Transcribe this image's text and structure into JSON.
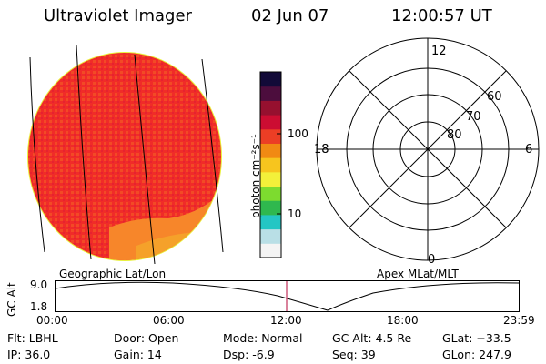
{
  "header": {
    "instrument": "Ultraviolet Imager",
    "date": "02 Jun 07",
    "time": "12:00:57 UT"
  },
  "colorbar": {
    "unit_label": "photon cm⁻²s⁻¹",
    "ticks": [
      "100",
      "10"
    ],
    "colors": [
      "#f4f4f4",
      "#b9dfe6",
      "#24c6c4",
      "#2fb84e",
      "#7ddb2f",
      "#f3f03a",
      "#f7c51e",
      "#f18a13",
      "#ec3e25",
      "#cc0d32",
      "#96102f",
      "#4c0d3d",
      "#120a38"
    ]
  },
  "polar_plot": {
    "mlt_labels": [
      "12",
      "18",
      "6",
      "0"
    ],
    "lat_labels": [
      "60",
      "70",
      "80"
    ]
  },
  "image": {
    "disk_fill": "#f02c28",
    "grid_color": "#000000"
  },
  "timeline": {
    "left_label": "Geographic Lat/Lon",
    "right_label": "Apex MLat/MLT",
    "axis_title": "GC Alt",
    "yticks": [
      "9.0",
      "1.8"
    ],
    "xticks": [
      "00:00",
      "06:00",
      "12:00",
      "18:00",
      "23:59"
    ],
    "marker_color": "#c0305a"
  },
  "info": {
    "flt": "Flt: LBHL",
    "ip": "IP: 36.0",
    "door": "Door: Open",
    "gain": "Gain: 14",
    "mode": "Mode: Normal",
    "dsp": "Dsp:    -6.9",
    "gcalt": "GC Alt: 4.5 Re",
    "seq": "Seq: 39",
    "glat": "GLat: −33.5",
    "glon": "GLon: 247.9"
  }
}
